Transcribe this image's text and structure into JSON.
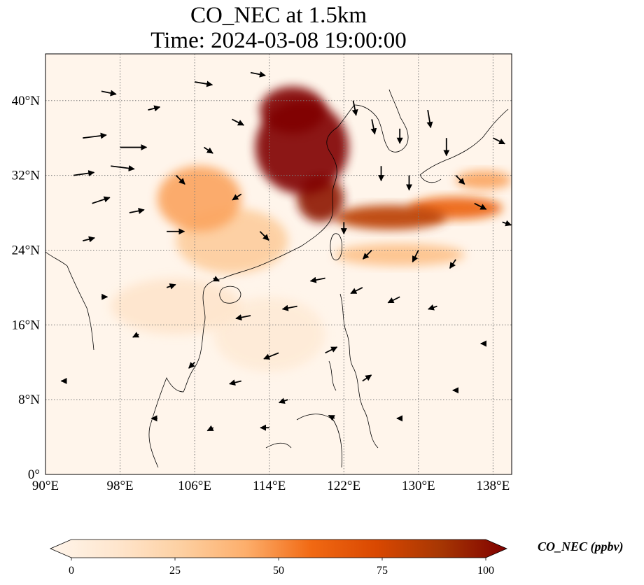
{
  "figure": {
    "title_line_1": "CO_NEC at 1.5km",
    "title_line_2": "Time: 2024-03-08 19:00:00"
  },
  "map": {
    "projection": "PlateCarree",
    "lon_range": [
      90,
      140
    ],
    "lat_range": [
      0,
      45
    ],
    "gridlines": "on",
    "gridline_style": "dotted",
    "x_ticks": [
      {
        "value": 90,
        "label": "90°E"
      },
      {
        "value": 98,
        "label": "98°E"
      },
      {
        "value": 106,
        "label": "106°E"
      },
      {
        "value": 114,
        "label": "114°E"
      },
      {
        "value": 122,
        "label": "122°E"
      },
      {
        "value": 130,
        "label": "130°E"
      },
      {
        "value": 138,
        "label": "138°E"
      }
    ],
    "y_ticks": [
      {
        "value": 0,
        "label": "0°"
      },
      {
        "value": 8,
        "label": "8°N"
      },
      {
        "value": 16,
        "label": "16°N"
      },
      {
        "value": 24,
        "label": "24°N"
      },
      {
        "value": 32,
        "label": "32°N"
      },
      {
        "value": 40,
        "label": "40°N"
      }
    ],
    "background_color": "#fff5eb",
    "coastline_color": "#000000",
    "vector_color": "#000000"
  },
  "field": {
    "variable": "CO_NEC",
    "unit": "ppbv",
    "plumes": [
      {
        "id": "north-china-plain",
        "lon": 117.5,
        "lat": 35.0,
        "rx": 5.0,
        "ry": 5.0,
        "value": 100
      },
      {
        "id": "beijing-bohai",
        "lon": 116.5,
        "lat": 39.0,
        "rx": 3.5,
        "ry": 2.5,
        "value": 100
      },
      {
        "id": "yangtze-delta",
        "lon": 119.5,
        "lat": 29.5,
        "rx": 2.5,
        "ry": 2.5,
        "value": 95
      },
      {
        "id": "sichuan-basin",
        "lon": 106.5,
        "lat": 29.5,
        "rx": 4.5,
        "ry": 3.5,
        "value": 45
      },
      {
        "id": "south-china",
        "lon": 110.0,
        "lat": 25.0,
        "rx": 6.0,
        "ry": 3.5,
        "value": 30
      },
      {
        "id": "east-china-sea-plume",
        "lon": 127.0,
        "lat": 27.5,
        "rx": 6.0,
        "ry": 1.3,
        "value": 80
      },
      {
        "id": "pacific-plume",
        "lon": 134.0,
        "lat": 28.5,
        "rx": 5.0,
        "ry": 1.2,
        "value": 60
      },
      {
        "id": "japan-plume",
        "lon": 137.0,
        "lat": 31.5,
        "rx": 3.0,
        "ry": 1.0,
        "value": 45
      },
      {
        "id": "southern-plume",
        "lon": 128.0,
        "lat": 23.5,
        "rx": 7.0,
        "ry": 1.2,
        "value": 35
      },
      {
        "id": "indochina-haze",
        "lon": 104.0,
        "lat": 18.0,
        "rx": 7.0,
        "ry": 3.0,
        "value": 15
      },
      {
        "id": "south-china-sea-haze",
        "lon": 114.0,
        "lat": 15.0,
        "rx": 6.0,
        "ry": 4.0,
        "value": 10
      }
    ],
    "winds": [
      {
        "lon": 94,
        "lat": 36,
        "u": 8,
        "v": 1
      },
      {
        "lon": 98,
        "lat": 35,
        "u": 9,
        "v": 0
      },
      {
        "lon": 93,
        "lat": 32,
        "u": 7,
        "v": 1
      },
      {
        "lon": 97,
        "lat": 33,
        "u": 8,
        "v": -1
      },
      {
        "lon": 95,
        "lat": 29,
        "u": 6,
        "v": 2
      },
      {
        "lon": 99,
        "lat": 28,
        "u": 5,
        "v": 1
      },
      {
        "lon": 94,
        "lat": 25,
        "u": 4,
        "v": 1
      },
      {
        "lon": 103,
        "lat": 26,
        "u": 6,
        "v": 0
      },
      {
        "lon": 101,
        "lat": 39,
        "u": 4,
        "v": 1
      },
      {
        "lon": 96,
        "lat": 41,
        "u": 5,
        "v": -1
      },
      {
        "lon": 106,
        "lat": 42,
        "u": 6,
        "v": -1
      },
      {
        "lon": 112,
        "lat": 43,
        "u": 5,
        "v": -1
      },
      {
        "lon": 110,
        "lat": 38,
        "u": 4,
        "v": -2
      },
      {
        "lon": 107,
        "lat": 35,
        "u": 3,
        "v": -2
      },
      {
        "lon": 104,
        "lat": 32,
        "u": 3,
        "v": -3
      },
      {
        "lon": 111,
        "lat": 30,
        "u": -3,
        "v": -2
      },
      {
        "lon": 113,
        "lat": 26,
        "u": 3,
        "v": -3
      },
      {
        "lon": 123,
        "lat": 40,
        "u": 1,
        "v": -5
      },
      {
        "lon": 125,
        "lat": 38,
        "u": 1,
        "v": -5
      },
      {
        "lon": 128,
        "lat": 37,
        "u": 0,
        "v": -5
      },
      {
        "lon": 131,
        "lat": 39,
        "u": 1,
        "v": -6
      },
      {
        "lon": 133,
        "lat": 36,
        "u": 0,
        "v": -6
      },
      {
        "lon": 126,
        "lat": 33,
        "u": 0,
        "v": -5
      },
      {
        "lon": 129,
        "lat": 32,
        "u": 0,
        "v": -5
      },
      {
        "lon": 134,
        "lat": 32,
        "u": 3,
        "v": -3
      },
      {
        "lon": 138,
        "lat": 36,
        "u": 4,
        "v": -2
      },
      {
        "lon": 136,
        "lat": 29,
        "u": 4,
        "v": -2
      },
      {
        "lon": 139,
        "lat": 27,
        "u": 3,
        "v": -1
      },
      {
        "lon": 122,
        "lat": 27,
        "u": 0,
        "v": -4
      },
      {
        "lon": 125,
        "lat": 24,
        "u": -3,
        "v": -3
      },
      {
        "lon": 130,
        "lat": 24,
        "u": -2,
        "v": -4
      },
      {
        "lon": 134,
        "lat": 23,
        "u": -2,
        "v": -3
      },
      {
        "lon": 120,
        "lat": 21,
        "u": -5,
        "v": -1
      },
      {
        "lon": 124,
        "lat": 20,
        "u": -4,
        "v": -2
      },
      {
        "lon": 128,
        "lat": 19,
        "u": -4,
        "v": -2
      },
      {
        "lon": 132,
        "lat": 18,
        "u": -3,
        "v": -1
      },
      {
        "lon": 117,
        "lat": 18,
        "u": -5,
        "v": -1
      },
      {
        "lon": 112,
        "lat": 17,
        "u": -5,
        "v": -1
      },
      {
        "lon": 115,
        "lat": 13,
        "u": -5,
        "v": -2
      },
      {
        "lon": 120,
        "lat": 13,
        "u": 4,
        "v": 2
      },
      {
        "lon": 124,
        "lat": 10,
        "u": 3,
        "v": 2
      },
      {
        "lon": 111,
        "lat": 10,
        "u": -4,
        "v": -1
      },
      {
        "lon": 116,
        "lat": 8,
        "u": -3,
        "v": -1
      },
      {
        "lon": 106,
        "lat": 12,
        "u": -2,
        "v": -2
      },
      {
        "lon": 102,
        "lat": 6,
        "u": -2,
        "v": 0
      },
      {
        "lon": 108,
        "lat": 5,
        "u": -2,
        "v": -1
      },
      {
        "lon": 114,
        "lat": 5,
        "u": -3,
        "v": 0
      },
      {
        "lon": 121,
        "lat": 6,
        "u": -2,
        "v": 1
      },
      {
        "lon": 128,
        "lat": 6,
        "u": -1,
        "v": 0
      },
      {
        "lon": 134,
        "lat": 9,
        "u": -1,
        "v": 0
      },
      {
        "lon": 100,
        "lat": 15,
        "u": -2,
        "v": -1
      },
      {
        "lon": 96,
        "lat": 19,
        "u": 2,
        "v": 0
      },
      {
        "lon": 103,
        "lat": 20,
        "u": 3,
        "v": 1
      },
      {
        "lon": 108,
        "lat": 21,
        "u": 2,
        "v": -1
      },
      {
        "lon": 92,
        "lat": 10,
        "u": -1,
        "v": 0
      },
      {
        "lon": 137,
        "lat": 14,
        "u": -1,
        "v": 0
      }
    ]
  },
  "colorbar": {
    "label": "CO_NEC (ppbv)",
    "min": 0,
    "max": 100,
    "extend": "both",
    "cmap": "OrRd",
    "ticks": [
      {
        "value": 0,
        "label": "0"
      },
      {
        "value": 25,
        "label": "25"
      },
      {
        "value": 50,
        "label": "50"
      },
      {
        "value": 75,
        "label": "75"
      },
      {
        "value": 100,
        "label": "100"
      }
    ],
    "stops": [
      "#fff5eb",
      "#fee6ce",
      "#fdd0a2",
      "#fdae6b",
      "#f16913",
      "#d94801",
      "#a63603",
      "#800000"
    ]
  }
}
